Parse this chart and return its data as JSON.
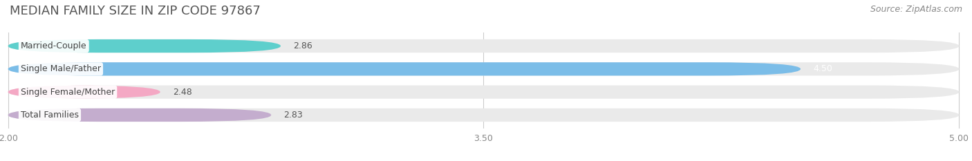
{
  "title": "MEDIAN FAMILY SIZE IN ZIP CODE 97867",
  "source": "Source: ZipAtlas.com",
  "categories": [
    "Married-Couple",
    "Single Male/Father",
    "Single Female/Mother",
    "Total Families"
  ],
  "values": [
    2.86,
    4.5,
    2.48,
    2.83
  ],
  "bar_colors": [
    "#5ECFCC",
    "#7BBDE8",
    "#F4A8C4",
    "#C4ADCE"
  ],
  "bar_bg_color": "#EAEAEA",
  "value_text_colors": [
    "#555555",
    "#ffffff",
    "#555555",
    "#555555"
  ],
  "xlim": [
    2.0,
    5.0
  ],
  "xticks": [
    2.0,
    3.5,
    5.0
  ],
  "bar_height": 0.58,
  "figsize": [
    14.06,
    2.33
  ],
  "dpi": 100,
  "title_fontsize": 13,
  "source_fontsize": 9,
  "label_fontsize": 9,
  "value_fontsize": 9,
  "tick_fontsize": 9,
  "bg_color": "#ffffff",
  "title_color": "#555555",
  "source_color": "#888888",
  "tick_color": "#888888",
  "grid_color": "#cccccc"
}
